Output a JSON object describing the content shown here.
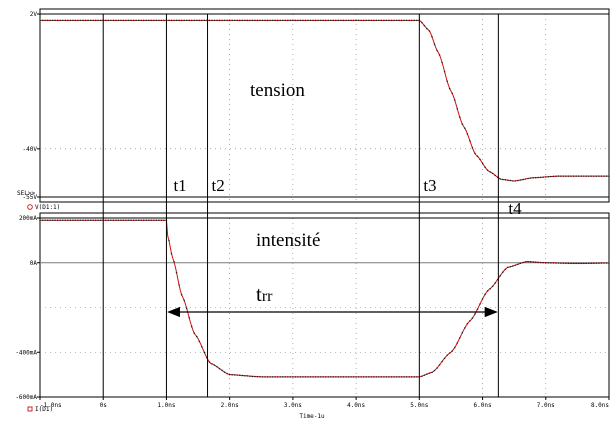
{
  "chart_data": [
    {
      "type": "line",
      "panel": "voltage",
      "title": "",
      "xlabel": "Time-1u",
      "ylabel": "",
      "xlim": [
        -1.0,
        8.0
      ],
      "ylim": [
        -55,
        2
      ],
      "x_tick_labels": [
        "-1.0ns",
        "0s",
        "1.0ns",
        "2.0ns",
        "3.0ns",
        "4.0ns",
        "5.0ns",
        "6.0ns",
        "7.0ns",
        "8.0ns"
      ],
      "y_tick_labels": [
        {
          "value": 2,
          "label": "2V"
        },
        {
          "value": -40,
          "label": "-40V"
        },
        {
          "value": -55,
          "label": "-55V"
        }
      ],
      "sel_label": "SEL>>",
      "legend": [
        "V(D1:1)"
      ],
      "grid": "dotted",
      "series": [
        {
          "name": "V(D1:1)",
          "color": "#d01010",
          "points": [
            [
              -1.0,
              0
            ],
            [
              1.0,
              0
            ],
            [
              5.0,
              0
            ],
            [
              5.15,
              -3
            ],
            [
              5.3,
              -10
            ],
            [
              5.5,
              -22
            ],
            [
              5.7,
              -33
            ],
            [
              5.9,
              -42
            ],
            [
              6.1,
              -47
            ],
            [
              6.3,
              -49.5
            ],
            [
              6.5,
              -50
            ],
            [
              6.8,
              -49
            ],
            [
              7.2,
              -48.5
            ],
            [
              7.6,
              -48.5
            ],
            [
              8.0,
              -48.5
            ]
          ]
        }
      ]
    },
    {
      "type": "line",
      "panel": "current",
      "title": "",
      "xlabel": "Time-1u",
      "ylabel": "",
      "xlim": [
        -1.0,
        8.0
      ],
      "ylim": [
        -600,
        200
      ],
      "x_tick_labels": [
        "-1.0ns",
        "0s",
        "1.0ns",
        "2.0ns",
        "3.0ns",
        "4.0ns",
        "5.0ns",
        "6.0ns",
        "7.0ns",
        "8.0ns"
      ],
      "y_tick_labels": [
        {
          "value": 200,
          "label": "200mA"
        },
        {
          "value": 0,
          "label": "0A"
        },
        {
          "value": -400,
          "label": "-400mA"
        },
        {
          "value": -600,
          "label": "-600mA"
        }
      ],
      "legend": [
        "I(D1)"
      ],
      "grid": "dotted",
      "series": [
        {
          "name": "I(D1)",
          "color": "#d01010",
          "points": [
            [
              -1.0,
              190
            ],
            [
              1.0,
              190
            ],
            [
              1.02,
              120
            ],
            [
              1.1,
              20
            ],
            [
              1.25,
              -150
            ],
            [
              1.45,
              -320
            ],
            [
              1.7,
              -450
            ],
            [
              2.0,
              -500
            ],
            [
              2.5,
              -510
            ],
            [
              4.0,
              -510
            ],
            [
              5.0,
              -510
            ],
            [
              5.2,
              -490
            ],
            [
              5.5,
              -400
            ],
            [
              5.8,
              -260
            ],
            [
              6.1,
              -120
            ],
            [
              6.4,
              -20
            ],
            [
              6.7,
              5
            ],
            [
              7.0,
              0
            ],
            [
              7.5,
              -3
            ],
            [
              8.0,
              -1
            ]
          ]
        }
      ]
    }
  ],
  "markers": [
    {
      "label": "t1",
      "x": 1.0
    },
    {
      "label": "t2",
      "x": 1.65
    },
    {
      "label": "t3",
      "x": 5.0
    },
    {
      "label": "t4",
      "x": 6.25
    }
  ],
  "extra_vline_x": 0.0,
  "annotations": {
    "tension": "tension",
    "intensite": "intensité",
    "trr_main": "t",
    "trr_sub": "rr"
  },
  "trr_arrow": {
    "from_x": 1.0,
    "to_x": 6.25,
    "y_current": -400
  },
  "colors": {
    "trace": "#d01010",
    "dot": "#202020",
    "axis": "#000000",
    "grid": "#7a7a7a",
    "line": "#000000"
  }
}
